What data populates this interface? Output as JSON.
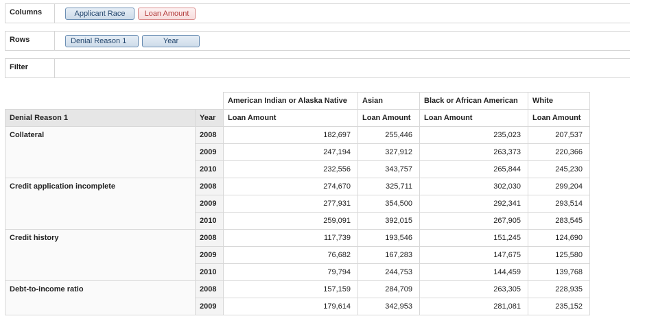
{
  "shelves": {
    "columns": {
      "label": "Columns",
      "pills": [
        {
          "label": "Applicant Race",
          "kind": "dimension"
        },
        {
          "label": "Loan Amount",
          "kind": "measure"
        }
      ]
    },
    "rows": {
      "label": "Rows",
      "pills": [
        {
          "label": "Denial Reason 1",
          "kind": "dimension"
        },
        {
          "label": "Year",
          "kind": "dimension"
        }
      ]
    },
    "filter": {
      "label": "Filter"
    }
  },
  "table": {
    "row_headers": [
      "Denial Reason 1",
      "Year"
    ],
    "columns": [
      {
        "race": "American Indian or Alaska Native",
        "measure": "Loan Amount"
      },
      {
        "race": "Asian",
        "measure": "Loan Amount"
      },
      {
        "race": "Black or African American",
        "measure": "Loan Amount"
      },
      {
        "race": "White",
        "measure": "Loan Amount"
      }
    ],
    "groups": [
      {
        "reason": "Collateral",
        "rows": [
          {
            "year": "2008",
            "values": [
              "182,697",
              "255,446",
              "235,023",
              "207,537"
            ]
          },
          {
            "year": "2009",
            "values": [
              "247,194",
              "327,912",
              "263,373",
              "220,366"
            ]
          },
          {
            "year": "2010",
            "values": [
              "232,556",
              "343,757",
              "265,844",
              "245,230"
            ]
          }
        ]
      },
      {
        "reason": "Credit application incomplete",
        "rows": [
          {
            "year": "2008",
            "values": [
              "274,670",
              "325,711",
              "302,030",
              "299,204"
            ]
          },
          {
            "year": "2009",
            "values": [
              "277,931",
              "354,500",
              "292,341",
              "293,514"
            ]
          },
          {
            "year": "2010",
            "values": [
              "259,091",
              "392,015",
              "267,905",
              "283,545"
            ]
          }
        ]
      },
      {
        "reason": "Credit history",
        "rows": [
          {
            "year": "2008",
            "values": [
              "117,739",
              "193,546",
              "151,245",
              "124,690"
            ]
          },
          {
            "year": "2009",
            "values": [
              "76,682",
              "167,283",
              "147,675",
              "125,580"
            ]
          },
          {
            "year": "2010",
            "values": [
              "79,794",
              "244,753",
              "144,459",
              "139,768"
            ]
          }
        ]
      },
      {
        "reason": "Debt-to-income ratio",
        "rows": [
          {
            "year": "2008",
            "values": [
              "157,159",
              "284,709",
              "263,305",
              "228,935"
            ]
          },
          {
            "year": "2009",
            "values": [
              "179,614",
              "342,953",
              "281,081",
              "235,152"
            ]
          }
        ]
      }
    ]
  }
}
